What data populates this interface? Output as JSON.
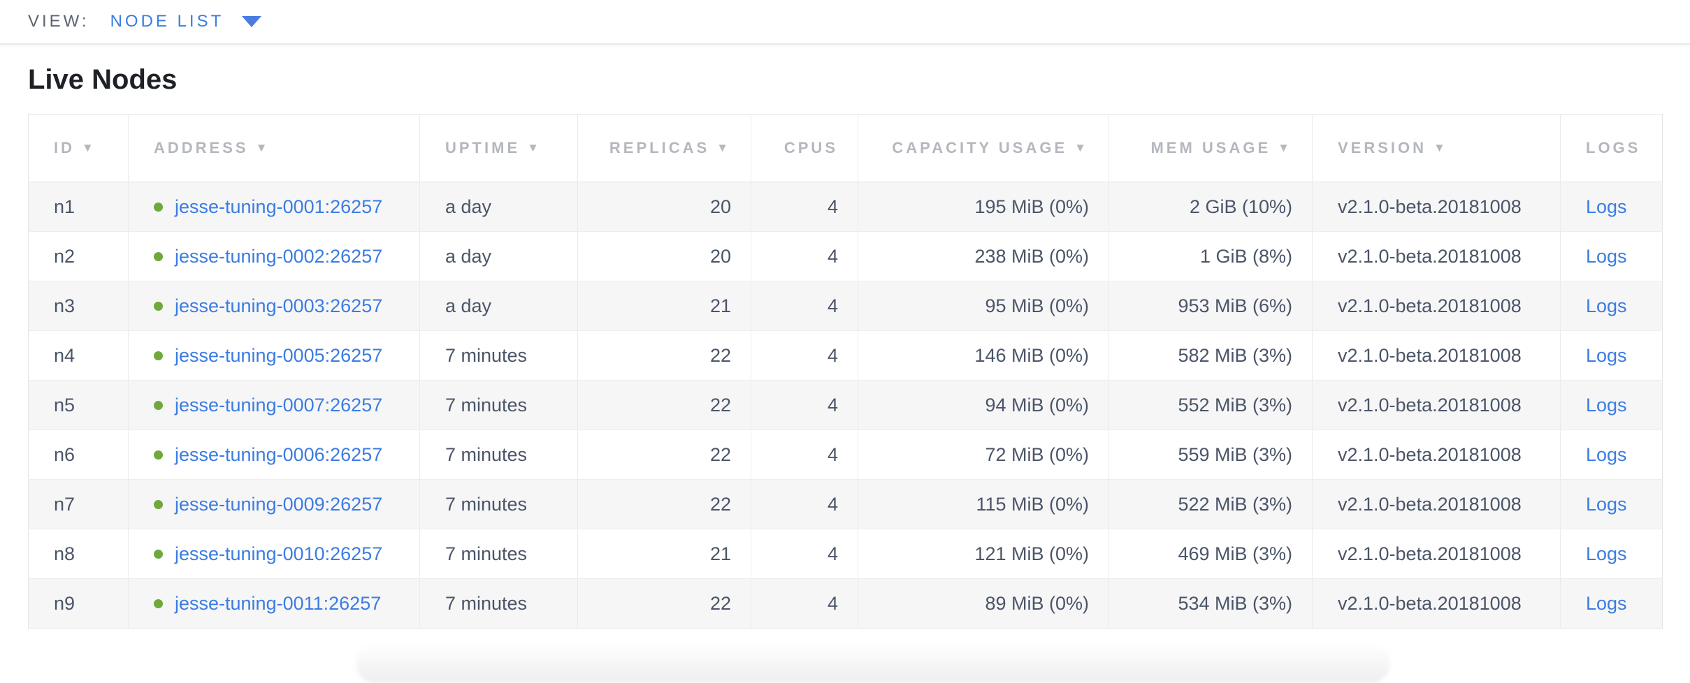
{
  "view_bar": {
    "label": "VIEW:",
    "selected": "NODE LIST"
  },
  "page": {
    "title": "Live Nodes"
  },
  "icons": {
    "sort_desc": "▼"
  },
  "colors": {
    "link_blue": "#3b7ce2",
    "live_dot_green": "#6fa83b",
    "header_gray": "#b4b7be",
    "cell_text": "#4b5568"
  },
  "table": {
    "columns": [
      {
        "key": "id",
        "label": "ID",
        "sortable": true,
        "align": "left"
      },
      {
        "key": "address",
        "label": "ADDRESS",
        "sortable": true,
        "align": "left"
      },
      {
        "key": "uptime",
        "label": "UPTIME",
        "sortable": true,
        "align": "left"
      },
      {
        "key": "replicas",
        "label": "REPLICAS",
        "sortable": true,
        "align": "right"
      },
      {
        "key": "cpus",
        "label": "CPUS",
        "sortable": false,
        "align": "right"
      },
      {
        "key": "capacity",
        "label": "CAPACITY USAGE",
        "sortable": true,
        "align": "right"
      },
      {
        "key": "mem",
        "label": "MEM USAGE",
        "sortable": true,
        "align": "right"
      },
      {
        "key": "version",
        "label": "VERSION",
        "sortable": true,
        "align": "left"
      },
      {
        "key": "logs",
        "label": "LOGS",
        "sortable": false,
        "align": "left"
      }
    ],
    "rows": [
      {
        "id": "n1",
        "status": "live",
        "address": "jesse-tuning-0001:26257",
        "uptime": "a day",
        "replicas": "20",
        "cpus": "4",
        "capacity": "195 MiB (0%)",
        "mem": "2 GiB (10%)",
        "version": "v2.1.0-beta.20181008",
        "logs": "Logs"
      },
      {
        "id": "n2",
        "status": "live",
        "address": "jesse-tuning-0002:26257",
        "uptime": "a day",
        "replicas": "20",
        "cpus": "4",
        "capacity": "238 MiB (0%)",
        "mem": "1 GiB (8%)",
        "version": "v2.1.0-beta.20181008",
        "logs": "Logs"
      },
      {
        "id": "n3",
        "status": "live",
        "address": "jesse-tuning-0003:26257",
        "uptime": "a day",
        "replicas": "21",
        "cpus": "4",
        "capacity": "95 MiB (0%)",
        "mem": "953 MiB (6%)",
        "version": "v2.1.0-beta.20181008",
        "logs": "Logs"
      },
      {
        "id": "n4",
        "status": "live",
        "address": "jesse-tuning-0005:26257",
        "uptime": "7 minutes",
        "replicas": "22",
        "cpus": "4",
        "capacity": "146 MiB (0%)",
        "mem": "582 MiB (3%)",
        "version": "v2.1.0-beta.20181008",
        "logs": "Logs"
      },
      {
        "id": "n5",
        "status": "live",
        "address": "jesse-tuning-0007:26257",
        "uptime": "7 minutes",
        "replicas": "22",
        "cpus": "4",
        "capacity": "94 MiB (0%)",
        "mem": "552 MiB (3%)",
        "version": "v2.1.0-beta.20181008",
        "logs": "Logs"
      },
      {
        "id": "n6",
        "status": "live",
        "address": "jesse-tuning-0006:26257",
        "uptime": "7 minutes",
        "replicas": "22",
        "cpus": "4",
        "capacity": "72 MiB (0%)",
        "mem": "559 MiB (3%)",
        "version": "v2.1.0-beta.20181008",
        "logs": "Logs"
      },
      {
        "id": "n7",
        "status": "live",
        "address": "jesse-tuning-0009:26257",
        "uptime": "7 minutes",
        "replicas": "22",
        "cpus": "4",
        "capacity": "115 MiB (0%)",
        "mem": "522 MiB (3%)",
        "version": "v2.1.0-beta.20181008",
        "logs": "Logs"
      },
      {
        "id": "n8",
        "status": "live",
        "address": "jesse-tuning-0010:26257",
        "uptime": "7 minutes",
        "replicas": "21",
        "cpus": "4",
        "capacity": "121 MiB (0%)",
        "mem": "469 MiB (3%)",
        "version": "v2.1.0-beta.20181008",
        "logs": "Logs"
      },
      {
        "id": "n9",
        "status": "live",
        "address": "jesse-tuning-0011:26257",
        "uptime": "7 minutes",
        "replicas": "22",
        "cpus": "4",
        "capacity": "89 MiB (0%)",
        "mem": "534 MiB (3%)",
        "version": "v2.1.0-beta.20181008",
        "logs": "Logs"
      }
    ]
  }
}
